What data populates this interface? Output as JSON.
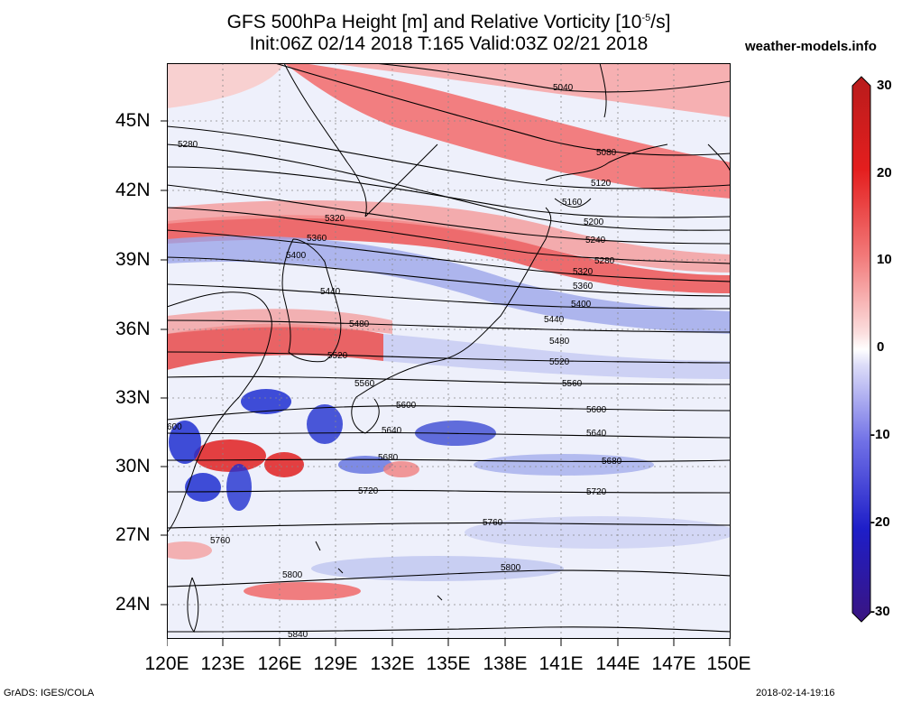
{
  "title": {
    "line1": "GFS 500hPa Height [m] and Relative Vorticity [10",
    "line1_sup": "-5",
    "line1_end": "/s]",
    "line2": "Init:06Z 02/14 2018 T:165 Valid:03Z 02/21 2018"
  },
  "site": "weather-models.info",
  "footer_left": "GrADS: IGES/COLA",
  "footer_right": "2018-02-14-19:16",
  "lat_labels": [
    "45N",
    "42N",
    "39N",
    "36N",
    "33N",
    "30N",
    "27N",
    "24N"
  ],
  "lon_labels": [
    "120E",
    "123E",
    "126E",
    "129E",
    "132E",
    "135E",
    "138E",
    "141E",
    "144E",
    "147E",
    "150E"
  ],
  "colorbar": {
    "labels": [
      "30",
      "20",
      "10",
      "0",
      "-10",
      "-20",
      "-30"
    ],
    "colors": [
      "#b81c1c",
      "#e83232",
      "#f07070",
      "#f8c8c8",
      "#ffffff",
      "#c8c8f8",
      "#7070e8",
      "#2828d0",
      "#18189a",
      "#3c1480"
    ]
  },
  "contour_labels": [
    "5040",
    "5080",
    "5120",
    "5160",
    "5200",
    "5240",
    "5280",
    "5320",
    "5360",
    "5400",
    "5440",
    "5480",
    "5520",
    "5560",
    "5600",
    "5640",
    "5680",
    "5720",
    "5760",
    "5800",
    "5840"
  ],
  "edge_labels": {
    "5280_left": "5280",
    "5600_left": "600",
    "5840_bottom": "5840"
  }
}
